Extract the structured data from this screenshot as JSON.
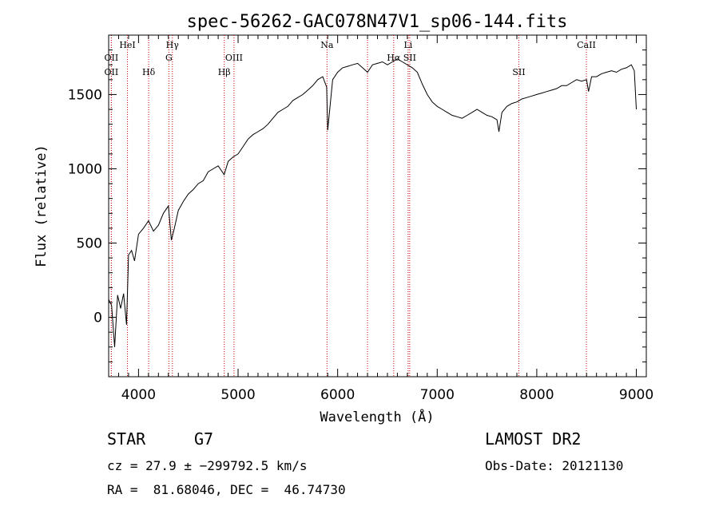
{
  "chart_data": {
    "type": "line",
    "title": "spec-56262-GAC078N47V1_sp06-144.fits",
    "xlabel": "Wavelength (Å)",
    "ylabel": "Flux (relative)",
    "xlim": [
      3700,
      9100
    ],
    "ylim": [
      -400,
      1900
    ],
    "xticks": [
      4000,
      5000,
      6000,
      7000,
      8000,
      9000
    ],
    "yticks": [
      0,
      500,
      1000,
      1500
    ],
    "series": [
      {
        "color": "#000000",
        "x": [
          3700,
          3730,
          3760,
          3790,
          3820,
          3850,
          3880,
          3900,
          3930,
          3960,
          4000,
          4050,
          4100,
          4150,
          4200,
          4250,
          4300,
          4330,
          4360,
          4400,
          4450,
          4500,
          4550,
          4600,
          4650,
          4700,
          4750,
          4800,
          4860,
          4900,
          4950,
          5000,
          5050,
          5100,
          5150,
          5200,
          5250,
          5300,
          5350,
          5400,
          5450,
          5500,
          5550,
          5600,
          5650,
          5700,
          5750,
          5800,
          5850,
          5890,
          5900,
          5950,
          6000,
          6050,
          6100,
          6150,
          6200,
          6250,
          6300,
          6350,
          6400,
          6450,
          6500,
          6550,
          6600,
          6650,
          6700,
          6750,
          6800,
          6850,
          6900,
          6950,
          7000,
          7050,
          7100,
          7150,
          7200,
          7250,
          7300,
          7350,
          7400,
          7450,
          7500,
          7550,
          7600,
          7620,
          7650,
          7700,
          7750,
          7800,
          7850,
          7900,
          7950,
          8000,
          8050,
          8100,
          8150,
          8200,
          8250,
          8300,
          8350,
          8400,
          8450,
          8500,
          8520,
          8550,
          8600,
          8650,
          8700,
          8750,
          8800,
          8850,
          8900,
          8950,
          8980,
          9000
        ],
        "y": [
          120,
          80,
          -200,
          150,
          60,
          160,
          -50,
          420,
          450,
          380,
          560,
          600,
          650,
          580,
          620,
          700,
          750,
          520,
          600,
          720,
          780,
          830,
          860,
          900,
          920,
          980,
          1000,
          1020,
          960,
          1050,
          1080,
          1100,
          1150,
          1200,
          1230,
          1250,
          1270,
          1300,
          1340,
          1380,
          1400,
          1420,
          1460,
          1480,
          1500,
          1530,
          1560,
          1600,
          1620,
          1550,
          1260,
          1600,
          1650,
          1680,
          1690,
          1700,
          1710,
          1680,
          1650,
          1700,
          1710,
          1720,
          1700,
          1720,
          1740,
          1720,
          1700,
          1680,
          1650,
          1570,
          1500,
          1450,
          1420,
          1400,
          1380,
          1360,
          1350,
          1340,
          1360,
          1380,
          1400,
          1380,
          1360,
          1350,
          1330,
          1250,
          1380,
          1420,
          1440,
          1450,
          1470,
          1480,
          1490,
          1500,
          1510,
          1520,
          1530,
          1540,
          1560,
          1560,
          1580,
          1600,
          1590,
          1600,
          1520,
          1620,
          1620,
          1640,
          1650,
          1660,
          1650,
          1670,
          1680,
          1700,
          1660,
          1400
        ]
      }
    ],
    "line_markers": [
      {
        "label": "OII",
        "x": 3727,
        "row": 2
      },
      {
        "label": "OII",
        "x": 3727,
        "row": 3
      },
      {
        "label": "HeI",
        "x": 3889,
        "row": 1
      },
      {
        "label": "Hδ",
        "x": 4102,
        "row": 3
      },
      {
        "label": "Hγ",
        "x": 4340,
        "row": 1
      },
      {
        "label": "G",
        "x": 4305,
        "row": 2
      },
      {
        "label": "Hβ",
        "x": 4861,
        "row": 3
      },
      {
        "label": "OIII",
        "x": 4959,
        "row": 2
      },
      {
        "label": "Na",
        "x": 5893,
        "row": 1
      },
      {
        "label": "",
        "x": 6300,
        "row": 0
      },
      {
        "label": "Hα",
        "x": 6563,
        "row": 2
      },
      {
        "label": "Li",
        "x": 6708,
        "row": 1
      },
      {
        "label": "SII",
        "x": 6724,
        "row": 2
      },
      {
        "label": "SII",
        "x": 7820,
        "row": 3
      },
      {
        "label": "CaII",
        "x": 8498,
        "row": 1
      }
    ],
    "grid": false,
    "legend": "none"
  },
  "info": {
    "class_type": "STAR",
    "subclass": "G7",
    "survey": "LAMOST DR2",
    "redshift": "cz = 27.9 ± −299792.5 km/s",
    "obs_date": "Obs-Date: 20121130",
    "coords": "RA =  81.68046, DEC =  46.74730"
  }
}
